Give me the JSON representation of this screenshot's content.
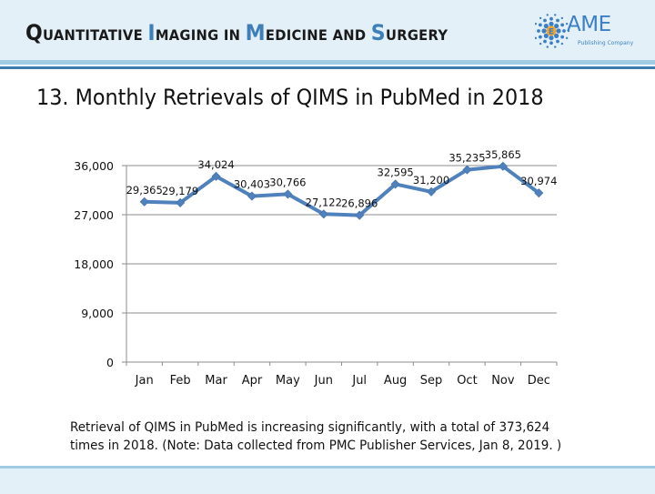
{
  "header": {
    "journal_title_parts": [
      {
        "cap": "Q",
        "rest": "UANTITATIVE ",
        "blue": false
      },
      {
        "cap": "I",
        "rest": "MAGING IN ",
        "blue": true
      },
      {
        "cap": "M",
        "rest": "EDICINE AND ",
        "blue": true
      },
      {
        "cap": "S",
        "rest": "URGERY",
        "blue": true
      }
    ],
    "logo": {
      "name": "AME",
      "subtitle": "Publishing Company",
      "icon": "ame-dots-globe-icon",
      "colors": {
        "primary": "#3b7fc4",
        "accent": "#f2a531"
      }
    }
  },
  "slide": {
    "title": "13. Monthly Retrievals of QIMS in PubMed in 2018",
    "note": "Retrieval of QIMS in PubMed is increasing significantly, with a total of 373,624 times in 2018. (Note: Data collected from PMC Publisher Services, Jan 8, 2019. )"
  },
  "chart_data": {
    "type": "line",
    "title": "",
    "xlabel": "",
    "ylabel": "",
    "categories": [
      "Jan",
      "Feb",
      "Mar",
      "Apr",
      "May",
      "Jun",
      "Jul",
      "Aug",
      "Sep",
      "Oct",
      "Nov",
      "Dec"
    ],
    "series": [
      {
        "name": "Monthly Retrievals",
        "values": [
          29365,
          29179,
          34024,
          30403,
          30766,
          27122,
          26896,
          32595,
          31200,
          35235,
          35865,
          30974
        ],
        "data_labels": [
          "29,365",
          "29,179",
          "34,024",
          "30,403",
          "30,766",
          "27,122",
          "26,896",
          "32,595",
          "31,200",
          "35,235",
          "35,865",
          "30,974"
        ],
        "color": "#4f81bd",
        "marker": "diamond"
      }
    ],
    "ylim": [
      0,
      36000
    ],
    "yticks": [
      0,
      9000,
      18000,
      27000,
      36000
    ],
    "ytick_labels": [
      "0",
      "9,000",
      "18,000",
      "27,000",
      "36,000"
    ],
    "grid": true,
    "legend": "none"
  }
}
